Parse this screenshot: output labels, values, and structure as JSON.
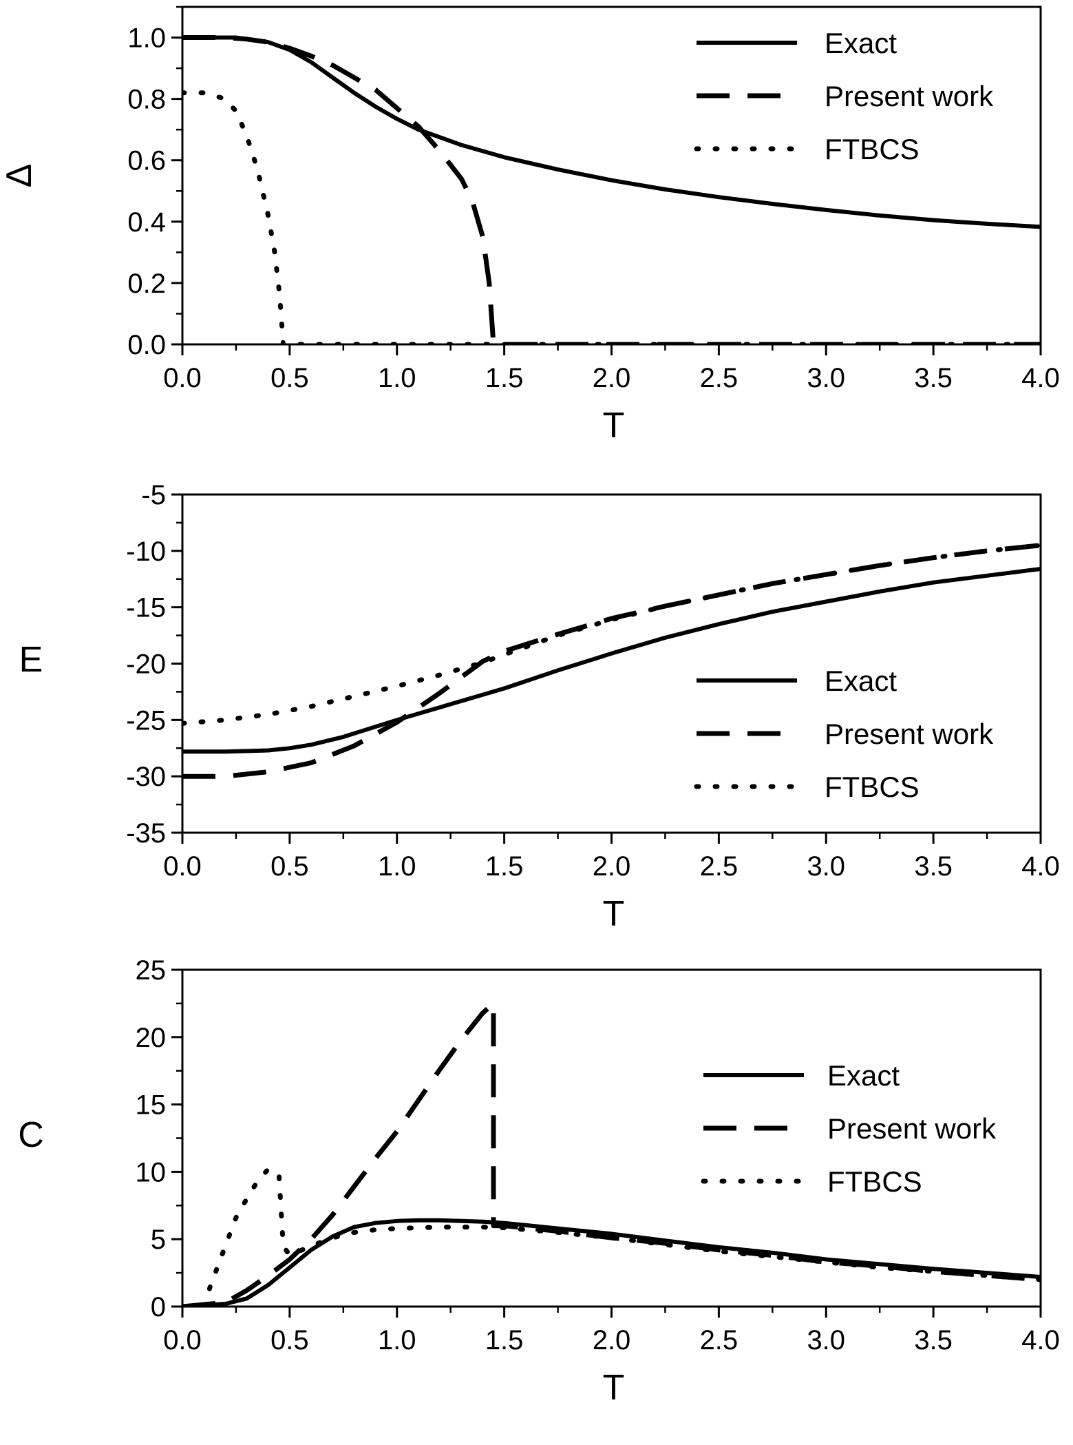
{
  "colors": {
    "ink": "#000000",
    "background": "#ffffff"
  },
  "chart_data": [
    {
      "id": "delta",
      "type": "line",
      "xlabel": "T",
      "ylabel": "Δ",
      "xlim": [
        0.0,
        4.0
      ],
      "ylim": [
        0.0,
        1.1
      ],
      "xticks": [
        0.0,
        0.5,
        1.0,
        1.5,
        2.0,
        2.5,
        3.0,
        3.5,
        4.0
      ],
      "xtick_labels": [
        "0.0",
        "0.5",
        "1.0",
        "1.5",
        "2.0",
        "2.5",
        "3.0",
        "3.5",
        "4.0"
      ],
      "yticks": [
        0.0,
        0.2,
        0.4,
        0.6,
        0.8,
        1.0
      ],
      "ytick_labels": [
        "0.0",
        "0.2",
        "0.4",
        "0.6",
        "0.8",
        "1.0"
      ],
      "grid": false,
      "legend": "top-right",
      "series": [
        {
          "name": "Exact",
          "style": "solid",
          "x": [
            0,
            0.1,
            0.2,
            0.25,
            0.3,
            0.4,
            0.5,
            0.6,
            0.7,
            0.8,
            0.9,
            1.0,
            1.1,
            1.2,
            1.3,
            1.4,
            1.5,
            1.75,
            2.0,
            2.25,
            2.5,
            2.75,
            3.0,
            3.25,
            3.5,
            3.75,
            4.0
          ],
          "y": [
            1.0,
            1.0,
            1.0,
            1.0,
            0.995,
            0.985,
            0.96,
            0.92,
            0.87,
            0.82,
            0.775,
            0.735,
            0.7,
            0.675,
            0.65,
            0.63,
            0.61,
            0.57,
            0.535,
            0.505,
            0.48,
            0.458,
            0.438,
            0.42,
            0.405,
            0.393,
            0.383
          ]
        },
        {
          "name": "Present work",
          "style": "dashed",
          "x": [
            0,
            0.2,
            0.3,
            0.4,
            0.5,
            0.6,
            0.7,
            0.8,
            0.9,
            1.0,
            1.1,
            1.2,
            1.3,
            1.35,
            1.4,
            1.43,
            1.45,
            1.5,
            2.0,
            2.5,
            3.0,
            3.5,
            4.0
          ],
          "y": [
            1.0,
            1.0,
            0.995,
            0.985,
            0.965,
            0.94,
            0.91,
            0.87,
            0.83,
            0.77,
            0.71,
            0.63,
            0.54,
            0.47,
            0.35,
            0.2,
            0.0,
            0.0,
            0.0,
            0.0,
            0.0,
            0.0,
            0.0
          ]
        },
        {
          "name": "FTBCS",
          "style": "dotted",
          "x": [
            0,
            0.1,
            0.2,
            0.25,
            0.3,
            0.35,
            0.4,
            0.43,
            0.45,
            0.46,
            0.47,
            0.5,
            1.0,
            2.0,
            3.0,
            4.0
          ],
          "y": [
            0.82,
            0.82,
            0.8,
            0.76,
            0.68,
            0.57,
            0.42,
            0.3,
            0.18,
            0.1,
            0.0,
            0.0,
            0.0,
            0.0,
            0.0,
            0.0
          ]
        }
      ]
    },
    {
      "id": "energy",
      "type": "line",
      "xlabel": "T",
      "ylabel": "E",
      "xlim": [
        0.0,
        4.0
      ],
      "ylim": [
        -35,
        -5
      ],
      "xticks": [
        0.0,
        0.5,
        1.0,
        1.5,
        2.0,
        2.5,
        3.0,
        3.5,
        4.0
      ],
      "xtick_labels": [
        "0.0",
        "0.5",
        "1.0",
        "1.5",
        "2.0",
        "2.5",
        "3.0",
        "3.5",
        "4.0"
      ],
      "yticks": [
        -35,
        -30,
        -25,
        -20,
        -15,
        -10,
        -5
      ],
      "ytick_labels": [
        "-35",
        "-30",
        "-25",
        "-20",
        "-15",
        "-10",
        "-5"
      ],
      "grid": false,
      "legend": "center-right",
      "series": [
        {
          "name": "Exact",
          "style": "solid",
          "x": [
            0,
            0.2,
            0.4,
            0.5,
            0.6,
            0.75,
            1.0,
            1.25,
            1.5,
            1.75,
            2.0,
            2.25,
            2.5,
            2.75,
            3.0,
            3.25,
            3.5,
            3.75,
            4.0
          ],
          "y": [
            -27.8,
            -27.8,
            -27.7,
            -27.5,
            -27.2,
            -26.5,
            -25.0,
            -23.6,
            -22.2,
            -20.6,
            -19.1,
            -17.7,
            -16.5,
            -15.4,
            -14.5,
            -13.6,
            -12.8,
            -12.2,
            -11.6
          ]
        },
        {
          "name": "Present work",
          "style": "dashed",
          "x": [
            0,
            0.2,
            0.4,
            0.6,
            0.8,
            1.0,
            1.2,
            1.4,
            1.5,
            1.75,
            2.0,
            2.25,
            2.5,
            2.75,
            3.0,
            3.25,
            3.5,
            3.75,
            4.0
          ],
          "y": [
            -30.0,
            -30.0,
            -29.6,
            -28.8,
            -27.3,
            -25.2,
            -22.6,
            -19.8,
            -18.9,
            -17.4,
            -16.0,
            -14.9,
            -13.9,
            -12.9,
            -12.1,
            -11.3,
            -10.6,
            -10.0,
            -9.5
          ]
        },
        {
          "name": "FTBCS",
          "style": "dotted",
          "x": [
            0,
            0.2,
            0.4,
            0.6,
            0.8,
            1.0,
            1.2,
            1.4,
            1.5,
            1.75,
            2.0,
            2.25,
            2.5,
            2.75,
            3.0,
            3.25,
            3.5,
            3.75,
            4.0
          ],
          "y": [
            -25.3,
            -25.0,
            -24.5,
            -23.8,
            -22.9,
            -22.0,
            -21.0,
            -19.9,
            -19.2,
            -17.5,
            -16.1,
            -14.9,
            -13.9,
            -12.9,
            -12.1,
            -11.3,
            -10.6,
            -10.0,
            -9.5
          ]
        }
      ]
    },
    {
      "id": "heat-capacity",
      "type": "line",
      "xlabel": "T",
      "ylabel": "C",
      "xlim": [
        0.0,
        4.0
      ],
      "ylim": [
        0,
        25
      ],
      "xticks": [
        0.0,
        0.5,
        1.0,
        1.5,
        2.0,
        2.5,
        3.0,
        3.5,
        4.0
      ],
      "xtick_labels": [
        "0.0",
        "0.5",
        "1.0",
        "1.5",
        "2.0",
        "2.5",
        "3.0",
        "3.5",
        "4.0"
      ],
      "yticks": [
        0,
        5,
        10,
        15,
        20,
        25
      ],
      "ytick_labels": [
        "0",
        "5",
        "10",
        "15",
        "20",
        "25"
      ],
      "grid": false,
      "legend": "center-right",
      "series": [
        {
          "name": "Exact",
          "style": "solid",
          "x": [
            0,
            0.1,
            0.2,
            0.3,
            0.4,
            0.5,
            0.6,
            0.7,
            0.8,
            0.9,
            1.0,
            1.1,
            1.2,
            1.3,
            1.4,
            1.5,
            1.75,
            2.0,
            2.25,
            2.5,
            2.75,
            3.0,
            3.25,
            3.5,
            3.75,
            4.0
          ],
          "y": [
            0.0,
            0.1,
            0.2,
            0.6,
            1.6,
            2.9,
            4.2,
            5.2,
            5.9,
            6.2,
            6.35,
            6.4,
            6.4,
            6.35,
            6.3,
            6.2,
            5.8,
            5.4,
            4.9,
            4.4,
            4.0,
            3.5,
            3.15,
            2.8,
            2.5,
            2.2
          ]
        },
        {
          "name": "Present work",
          "style": "dashed",
          "x": [
            0,
            0.2,
            0.3,
            0.4,
            0.5,
            0.6,
            0.7,
            0.8,
            0.9,
            1.0,
            1.1,
            1.2,
            1.3,
            1.4,
            1.45,
            1.45,
            1.5,
            1.75,
            2.0,
            2.25,
            2.5,
            2.75,
            3.0,
            3.25,
            3.5,
            3.75,
            4.0
          ],
          "y": [
            0.0,
            0.3,
            1.2,
            2.3,
            3.5,
            5.0,
            6.8,
            8.9,
            11.0,
            13.0,
            15.3,
            17.6,
            19.8,
            21.8,
            22.5,
            6.0,
            6.0,
            5.6,
            5.1,
            4.7,
            4.2,
            3.8,
            3.3,
            3.0,
            2.6,
            2.3,
            2.0
          ]
        },
        {
          "name": "FTBCS",
          "style": "dotted",
          "x": [
            0.1,
            0.13,
            0.2,
            0.25,
            0.3,
            0.35,
            0.4,
            0.45,
            0.47,
            0.5,
            0.6,
            0.7,
            0.8,
            0.9,
            1.0,
            1.2,
            1.4,
            1.5,
            1.75,
            2.0,
            2.25,
            2.5,
            2.75,
            3.0,
            3.25,
            3.5,
            3.75,
            4.0
          ],
          "y": [
            0.0,
            1.5,
            4.5,
            6.6,
            8.0,
            9.3,
            10.2,
            9.8,
            4.5,
            3.8,
            4.5,
            5.1,
            5.5,
            5.7,
            5.8,
            5.9,
            5.9,
            5.85,
            5.5,
            5.1,
            4.6,
            4.1,
            3.7,
            3.3,
            2.9,
            2.6,
            2.3,
            2.0
          ]
        }
      ]
    }
  ]
}
